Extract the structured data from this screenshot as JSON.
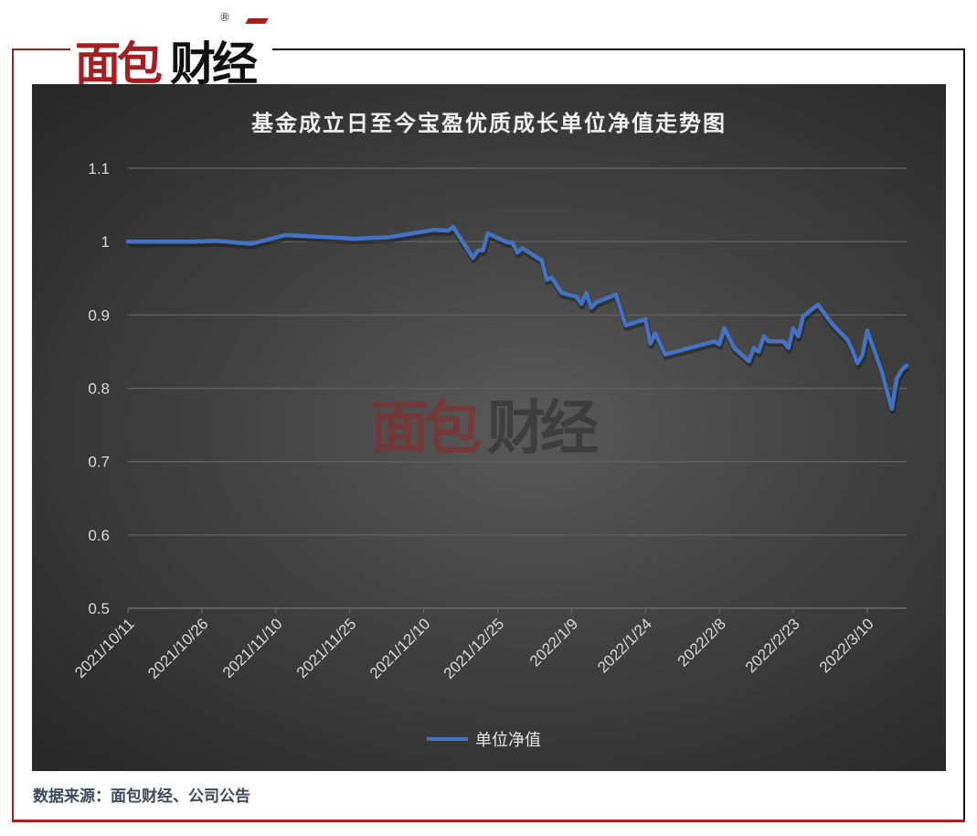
{
  "brand": {
    "logo_text": "面包财经",
    "registered_mark": "®"
  },
  "footer": {
    "source": "数据来源：面包财经、公司公告"
  },
  "chart_data": {
    "type": "line",
    "title": "基金成立日至今宝盈优质成长单位净值走势图",
    "xlabel": "",
    "ylabel": "",
    "ylim": [
      0.5,
      1.1
    ],
    "yticks": [
      "1.1",
      "1",
      "0.9",
      "0.8",
      "0.7",
      "0.6",
      "0.5"
    ],
    "xlim": [
      "2021/10/11",
      "2022/3/18"
    ],
    "xticks": [
      "2021/10/11",
      "2021/10/26",
      "2021/11/10",
      "2021/11/25",
      "2021/12/10",
      "2021/12/25",
      "2022/1/9",
      "2022/1/24",
      "2022/2/8",
      "2022/2/23",
      "2022/3/10"
    ],
    "grid": "horizontal",
    "legend": "bottom",
    "watermark": "面包财经",
    "series": [
      {
        "name": "单位净值",
        "color": "#4472c4",
        "points": [
          [
            "2021/10/11",
            1.0
          ],
          [
            "2021/10/24",
            1.0
          ],
          [
            "2021/10/29",
            1.001
          ],
          [
            "2021/11/5",
            0.997
          ],
          [
            "2021/11/12",
            1.009
          ],
          [
            "2021/11/26",
            1.004
          ],
          [
            "2021/12/3",
            1.006
          ],
          [
            "2021/12/12",
            1.016
          ],
          [
            "2021/12/15",
            1.015
          ],
          [
            "2021/12/16",
            1.02
          ],
          [
            "2021/12/20",
            0.978
          ],
          [
            "2021/12/21",
            0.988
          ],
          [
            "2021/12/22",
            0.988
          ],
          [
            "2021/12/23",
            1.011
          ],
          [
            "2021/12/27",
            0.999
          ],
          [
            "2021/12/28",
            0.999
          ],
          [
            "2021/12/29",
            0.985
          ],
          [
            "2021/12/30",
            0.991
          ],
          [
            "2022/1/3",
            0.974
          ],
          [
            "2022/1/4",
            0.948
          ],
          [
            "2022/1/5",
            0.951
          ],
          [
            "2022/1/7",
            0.93
          ],
          [
            "2022/1/10",
            0.925
          ],
          [
            "2022/1/11",
            0.915
          ],
          [
            "2022/1/12",
            0.93
          ],
          [
            "2022/1/13",
            0.91
          ],
          [
            "2022/1/14",
            0.917
          ],
          [
            "2022/1/18",
            0.928
          ],
          [
            "2022/1/20",
            0.886
          ],
          [
            "2022/1/24",
            0.894
          ],
          [
            "2022/1/25",
            0.861
          ],
          [
            "2022/1/26",
            0.875
          ],
          [
            "2022/1/28",
            0.846
          ],
          [
            "2022/2/7",
            0.864
          ],
          [
            "2022/2/8",
            0.86
          ],
          [
            "2022/2/9",
            0.882
          ],
          [
            "2022/2/11",
            0.855
          ],
          [
            "2022/2/14",
            0.837
          ],
          [
            "2022/2/15",
            0.855
          ],
          [
            "2022/2/16",
            0.85
          ],
          [
            "2022/2/17",
            0.871
          ],
          [
            "2022/2/18",
            0.864
          ],
          [
            "2022/2/21",
            0.864
          ],
          [
            "2022/2/22",
            0.855
          ],
          [
            "2022/2/23",
            0.882
          ],
          [
            "2022/2/24",
            0.871
          ],
          [
            "2022/2/25",
            0.898
          ],
          [
            "2022/2/28",
            0.914
          ],
          [
            "2022/3/3",
            0.887
          ],
          [
            "2022/3/6",
            0.866
          ],
          [
            "2022/3/7",
            0.852
          ],
          [
            "2022/3/8",
            0.834
          ],
          [
            "2022/3/9",
            0.845
          ],
          [
            "2022/3/10",
            0.879
          ],
          [
            "2022/3/13",
            0.822
          ],
          [
            "2022/3/15",
            0.772
          ],
          [
            "2022/3/16",
            0.813
          ],
          [
            "2022/3/17",
            0.825
          ],
          [
            "2022/3/18",
            0.831
          ]
        ]
      }
    ]
  }
}
